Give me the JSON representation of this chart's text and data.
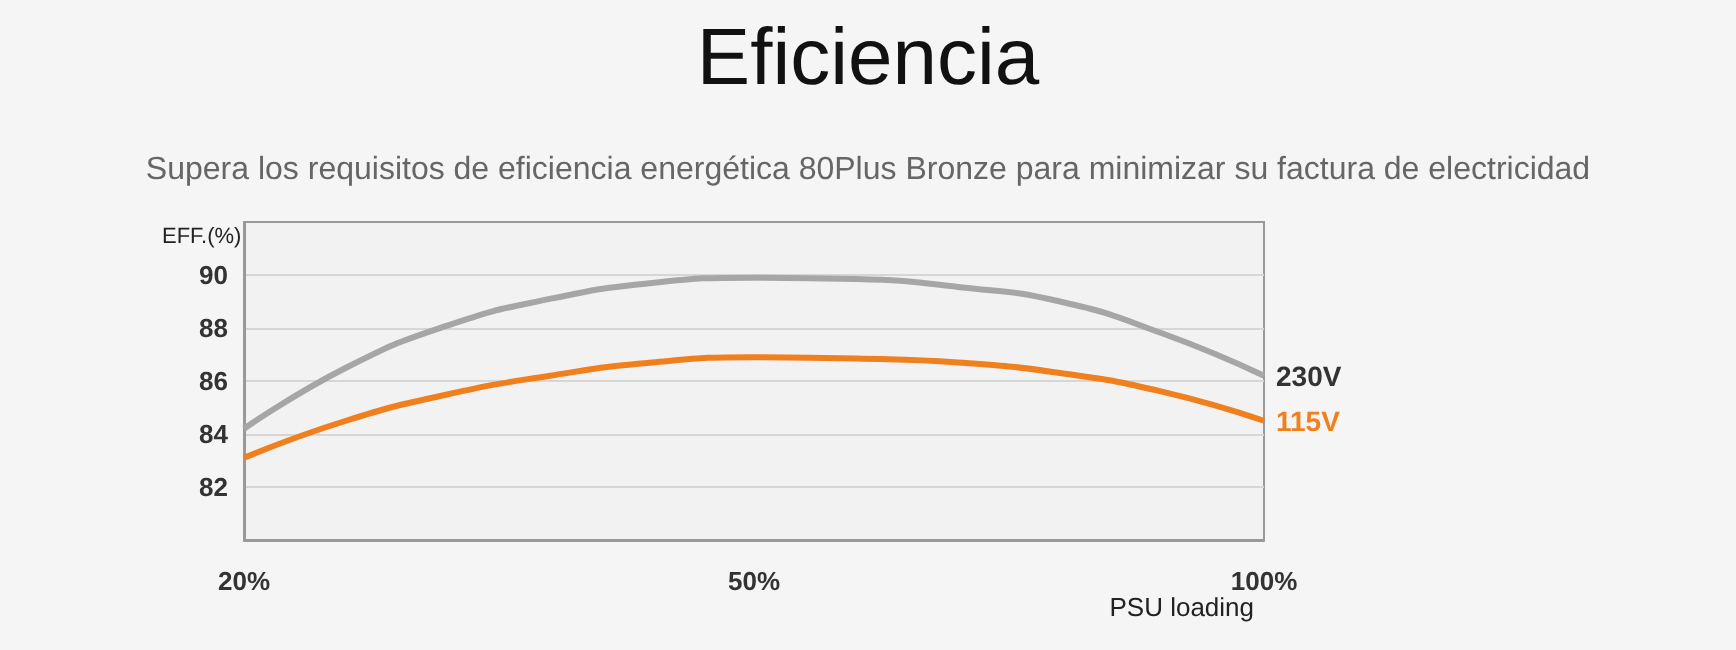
{
  "chart_data": {
    "type": "line",
    "title": "Eficiencia",
    "subtitle": "Supera los requisitos de eficiencia energética 80Plus Bronze para minimizar su factura de electricidad",
    "xlabel": "PSU loading",
    "ylabel": "EFF.(%)",
    "categories": [
      "20%",
      null,
      null,
      null,
      null,
      "50%",
      null,
      null,
      null,
      null,
      "100%"
    ],
    "series": [
      {
        "name": "230V",
        "color": "#a6a6a6",
        "values": [
          84.2,
          86.5,
          88.1,
          89.1,
          89.7,
          89.9,
          89.85,
          89.55,
          89.0,
          87.8,
          86.2
        ]
      },
      {
        "name": "115V",
        "color": "#f07f1e",
        "values": [
          83.1,
          84.5,
          85.5,
          86.2,
          86.7,
          86.9,
          86.85,
          86.7,
          86.3,
          85.6,
          84.5
        ]
      }
    ],
    "ylim": [
      80,
      92
    ],
    "yticks": [
      82,
      84,
      86,
      88,
      90
    ],
    "grid": "y",
    "legend": false,
    "marker": "none",
    "line_style": "solid"
  }
}
